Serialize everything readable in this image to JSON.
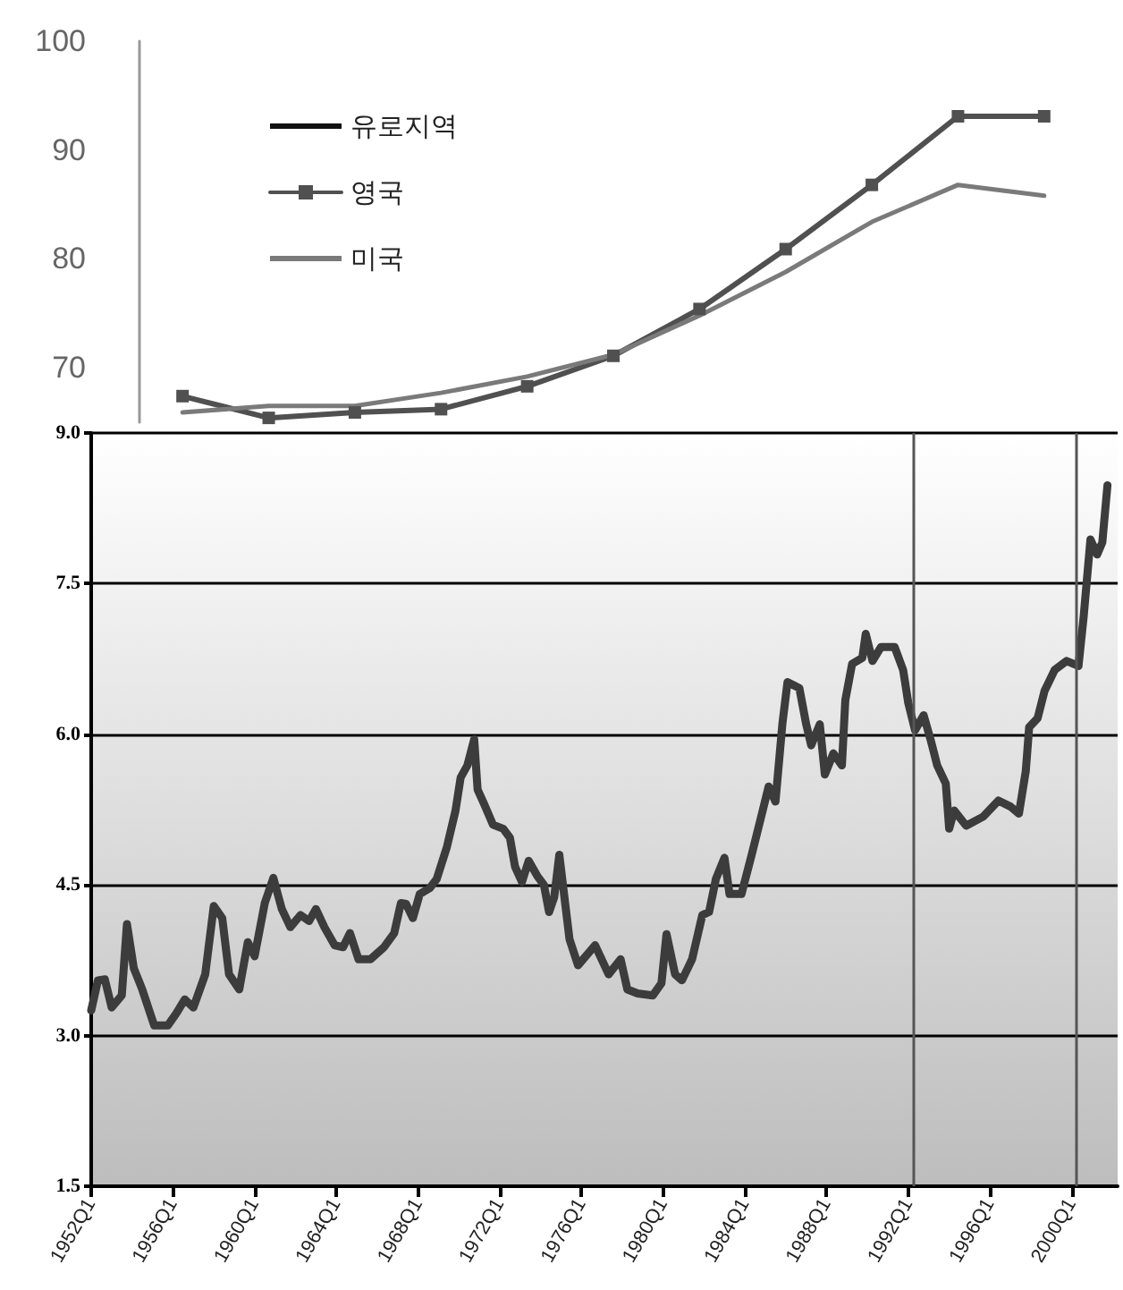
{
  "chart_data": [
    {
      "type": "line",
      "categories": [
        null,
        null,
        null,
        null,
        null,
        null,
        null,
        null,
        null,
        null,
        null
      ],
      "ylim": [
        65,
        100
      ],
      "yticks": [
        70,
        80,
        90,
        100
      ],
      "grid": false,
      "legend": "top left",
      "tick_labels": "y",
      "series": [
        {
          "name": "유로지역",
          "color": "#111111",
          "marker": "none",
          "values": [
            null,
            null,
            null,
            null,
            null,
            null,
            null,
            null,
            null,
            null,
            null
          ]
        },
        {
          "name": "영국",
          "color": "#505050",
          "marker": "square",
          "values": [
            67.4,
            65.4,
            65.9,
            66.2,
            68.3,
            71.1,
            75.4,
            80.9,
            86.8,
            93.1,
            93.1
          ]
        },
        {
          "name": "미국",
          "color": "#7a7a7a",
          "marker": "none",
          "values": [
            65.9,
            66.5,
            66.5,
            67.7,
            69.2,
            71.2,
            74.8,
            78.8,
            83.4,
            86.8,
            85.8
          ]
        }
      ]
    },
    {
      "type": "line",
      "xlim": [
        "1952-01",
        "2002-04"
      ],
      "xticks": [
        {
          "value": "1952-01",
          "label": "1952Q1"
        },
        {
          "value": "1956-01",
          "label": "1956Q1"
        },
        {
          "value": "1960-01",
          "label": "1960Q1"
        },
        {
          "value": "1964-01",
          "label": "1964Q1"
        },
        {
          "value": "1968-01",
          "label": "1968Q1"
        },
        {
          "value": "1972-01",
          "label": "1972Q1"
        },
        {
          "value": "1976-01",
          "label": "1976Q1"
        },
        {
          "value": "1980-01",
          "label": "1980Q1"
        },
        {
          "value": "1984-01",
          "label": "1984Q1"
        },
        {
          "value": "1988-01",
          "label": "1988Q1"
        },
        {
          "value": "1992-01",
          "label": "1992Q1"
        },
        {
          "value": "1996-01",
          "label": "1996Q1"
        },
        {
          "value": "2000-01",
          "label": "2000Q1"
        }
      ],
      "ylim": [
        1.5,
        9.0
      ],
      "yticks": [
        {
          "value": 1.5,
          "label": "1.5"
        },
        {
          "value": 3,
          "label": "3.0"
        },
        {
          "value": 4.5,
          "label": "4.5"
        },
        {
          "value": 6,
          "label": "6.0"
        },
        {
          "value": 7.5,
          "label": "7.5"
        },
        {
          "value": 9,
          "label": "9.0"
        }
      ],
      "grid": "y",
      "marker": "none",
      "ref_lines": [
        {
          "axis": "x",
          "value": "1992-04",
          "label": null,
          "color": "#555555"
        },
        {
          "axis": "x",
          "value": "2000-04",
          "label": null,
          "color": "#555555"
        }
      ],
      "series": [
        {
          "color": "#3c3c3c",
          "x": [
            "1952-01",
            "1952-05",
            "1952-09",
            "1953-01",
            "1953-07",
            "1953-10",
            "1954-02",
            "1954-07",
            "1955-02",
            "1955-10",
            "1956-03",
            "1956-08",
            "1957-01",
            "1957-08",
            "1958-01",
            "1958-06",
            "1958-10",
            "1959-04",
            "1959-09",
            "1960-01",
            "1960-07",
            "1960-12",
            "1961-05",
            "1961-10",
            "1962-04",
            "1962-09",
            "1963-01",
            "1963-06",
            "1963-12",
            "1964-05",
            "1964-09",
            "1965-02",
            "1965-09",
            "1966-05",
            "1966-11",
            "1967-03",
            "1967-06",
            "1967-10",
            "1968-02",
            "1968-08",
            "1968-12",
            "1969-06",
            "1969-11",
            "1970-02",
            "1970-06",
            "1970-10",
            "1970-12",
            "1971-04",
            "1971-09",
            "1972-03",
            "1972-07",
            "1972-10",
            "1973-02",
            "1973-06",
            "1973-11",
            "1974-03",
            "1974-06",
            "1974-09",
            "1974-12",
            "1975-06",
            "1975-11",
            "1976-09",
            "1977-05",
            "1977-12",
            "1978-04",
            "1978-10",
            "1979-07",
            "1979-12",
            "1980-03",
            "1980-08",
            "1980-12",
            "1981-06",
            "1981-12",
            "1982-04",
            "1982-08",
            "1983-01",
            "1983-04",
            "1983-11",
            "1984-05",
            "1984-11",
            "1985-03",
            "1985-07",
            "1985-11",
            "1986-02",
            "1986-09",
            "1987-01",
            "1987-04",
            "1987-09",
            "1987-12",
            "1988-05",
            "1988-10",
            "1988-12",
            "1989-04",
            "1989-10",
            "1989-12",
            "1990-04",
            "1990-09",
            "1991-05",
            "1991-10",
            "1992-01",
            "1992-05",
            "1992-10",
            "1993-02",
            "1993-06",
            "1993-11",
            "1994-01",
            "1994-04",
            "1994-11",
            "1995-09",
            "1996-06",
            "1997-01",
            "1997-06",
            "1997-10",
            "1997-12",
            "1998-05",
            "1998-09",
            "1999-03",
            "1999-10",
            "2000-05",
            "2000-08",
            "2000-12",
            "2001-04",
            "2001-07",
            "2001-10"
          ],
          "values": [
            3.25,
            3.55,
            3.56,
            3.28,
            3.4,
            4.11,
            3.67,
            3.46,
            3.1,
            3.1,
            3.22,
            3.36,
            3.28,
            3.61,
            4.29,
            4.17,
            3.61,
            3.46,
            3.93,
            3.79,
            4.32,
            4.57,
            4.26,
            4.08,
            4.2,
            4.14,
            4.26,
            4.08,
            3.9,
            3.88,
            4.02,
            3.76,
            3.76,
            3.88,
            4.02,
            4.32,
            4.31,
            4.17,
            4.41,
            4.47,
            4.56,
            4.88,
            5.24,
            5.57,
            5.69,
            5.95,
            5.45,
            5.3,
            5.1,
            5.06,
            4.97,
            4.68,
            4.53,
            4.74,
            4.59,
            4.5,
            4.23,
            4.38,
            4.8,
            3.96,
            3.7,
            3.9,
            3.61,
            3.76,
            3.46,
            3.42,
            3.4,
            3.52,
            4.01,
            3.61,
            3.55,
            3.76,
            4.2,
            4.23,
            4.56,
            4.77,
            4.41,
            4.41,
            4.8,
            5.21,
            5.48,
            5.33,
            6.1,
            6.52,
            6.46,
            6.1,
            5.89,
            6.1,
            5.6,
            5.81,
            5.69,
            6.34,
            6.7,
            6.76,
            7.0,
            6.73,
            6.87,
            6.87,
            6.64,
            6.31,
            6.04,
            6.19,
            5.95,
            5.69,
            5.51,
            5.06,
            5.24,
            5.09,
            5.18,
            5.34,
            5.28,
            5.21,
            5.63,
            6.07,
            6.16,
            6.43,
            6.64,
            6.73,
            6.68,
            7.17,
            7.94,
            7.79,
            7.91,
            8.48
          ]
        }
      ]
    }
  ]
}
